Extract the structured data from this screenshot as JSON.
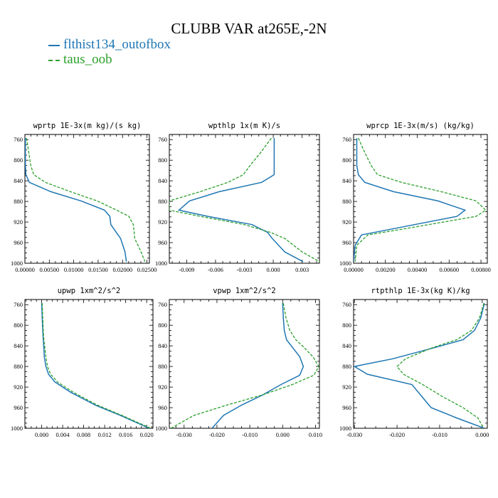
{
  "figure": {
    "title": "CLUBB VAR at265E,-2N",
    "legend": [
      {
        "label": "flthist134_outofbox",
        "color": "#1f77b4",
        "style": "solid"
      },
      {
        "label": "taus_oob",
        "color": "#2ca02c",
        "style": "dashed"
      }
    ]
  },
  "chart_data": [
    {
      "type": "line",
      "title": "wprtp  1E-3x(m kg)/(s kg)",
      "xlim": [
        0,
        0.0255
      ],
      "ylim": [
        1000,
        750
      ],
      "yticks": [
        760,
        800,
        840,
        880,
        920,
        960,
        1000
      ],
      "xticks": [
        0,
        0.005,
        0.01,
        0.015,
        0.02,
        0.025
      ],
      "xtick_labels": [
        "0.00000",
        "0.00500",
        "0.01000",
        "0.01500",
        "0.02000",
        "0.02500"
      ],
      "series": [
        {
          "name": "flthist134_outofbox",
          "x": [
            0.0001,
            0.0001,
            0.0001,
            0.0002,
            0.0009,
            0.0053,
            0.0115,
            0.0163,
            0.0174,
            0.0176,
            0.0196,
            0.0205,
            0.0208
          ],
          "y": [
            757,
            785,
            810,
            828,
            843,
            861,
            879,
            897,
            909,
            925,
            952,
            978,
            997
          ]
        },
        {
          "name": "taus_oob",
          "x": [
            0.0003,
            0.0008,
            0.0012,
            0.0018,
            0.0042,
            0.0093,
            0.0148,
            0.0188,
            0.0213,
            0.0222,
            0.0225,
            0.0238,
            0.0246
          ],
          "y": [
            757,
            785,
            810,
            828,
            843,
            861,
            879,
            897,
            909,
            925,
            952,
            978,
            997
          ]
        }
      ]
    },
    {
      "type": "line",
      "title": "wpthlp  1x(m K)/s",
      "xlim": [
        -0.0108,
        0.0048
      ],
      "ylim": [
        1000,
        750
      ],
      "yticks": [
        760,
        800,
        840,
        880,
        920,
        960,
        1000
      ],
      "xticks": [
        -0.009,
        -0.006,
        -0.003,
        0.0,
        0.003
      ],
      "xtick_labels": [
        "-0.009",
        "-0.006",
        "-0.003",
        "0.000",
        "0.003"
      ],
      "series": [
        {
          "name": "flthist134_outofbox",
          "x": [
            0.0001,
            0.0001,
            0.0001,
            0.0001,
            -0.0012,
            -0.0056,
            -0.0087,
            -0.0098,
            -0.0068,
            -0.0022,
            -0.0006,
            -0.0001,
            0.0012,
            0.0031
          ],
          "y": [
            757,
            785,
            810,
            828,
            843,
            861,
            879,
            897,
            909,
            925,
            940,
            952,
            978,
            997
          ]
        },
        {
          "name": "taus_oob",
          "x": [
            -0.0002,
            -0.0013,
            -0.0024,
            -0.0031,
            -0.0047,
            -0.0076,
            -0.0108,
            -0.0108,
            -0.0076,
            -0.003,
            -0.0003,
            0.0012,
            0.003,
            0.0048
          ],
          "y": [
            757,
            785,
            810,
            828,
            843,
            861,
            879,
            897,
            909,
            925,
            940,
            952,
            978,
            997
          ]
        }
      ]
    },
    {
      "type": "line",
      "title": "wprcp  1E-3x(m/s) (kg/kg)",
      "xlim": [
        0,
        0.0084
      ],
      "ylim": [
        1000,
        750
      ],
      "yticks": [
        760,
        800,
        840,
        880,
        920,
        960,
        1000
      ],
      "xticks": [
        0,
        0.002,
        0.004,
        0.006,
        0.008
      ],
      "xtick_labels": [
        "0.00000",
        "0.00200",
        "0.00400",
        "0.00600",
        "0.00800"
      ],
      "series": [
        {
          "name": "flthist134_outofbox",
          "x": [
            0.0002,
            0.0002,
            0.0002,
            0.0003,
            0.0007,
            0.0025,
            0.0053,
            0.007,
            0.0065,
            0.003,
            0.0005,
            0.0001,
            0.0
          ],
          "y": [
            757,
            785,
            810,
            828,
            843,
            861,
            879,
            897,
            909,
            930,
            945,
            965,
            997
          ]
        },
        {
          "name": "taus_oob",
          "x": [
            0.0003,
            0.0007,
            0.0011,
            0.0015,
            0.003,
            0.0055,
            0.0077,
            0.0083,
            0.0077,
            0.0038,
            0.0009,
            0.0002,
            0.0001
          ],
          "y": [
            757,
            785,
            810,
            828,
            843,
            861,
            879,
            897,
            909,
            930,
            945,
            965,
            997
          ]
        }
      ]
    },
    {
      "type": "line",
      "title": "upwp  1xm^2/s^2",
      "xlim": [
        -0.0032,
        0.0212
      ],
      "ylim": [
        1000,
        750
      ],
      "yticks": [
        760,
        800,
        840,
        880,
        920,
        960,
        1000
      ],
      "xticks": [
        0.0,
        0.004,
        0.008,
        0.012,
        0.016,
        0.02
      ],
      "xtick_labels": [
        "0.000",
        "0.004",
        "0.008",
        "0.012",
        "0.016",
        "0.020"
      ],
      "series": [
        {
          "name": "flthist134_outofbox",
          "x": [
            0.0,
            0.0001,
            0.0002,
            0.0003,
            0.0004,
            0.0005,
            0.0008,
            0.0013,
            0.0025,
            0.0055,
            0.0102,
            0.015,
            0.0205
          ],
          "y": [
            757,
            785,
            810,
            828,
            843,
            861,
            880,
            895,
            910,
            930,
            955,
            975,
            1000
          ]
        },
        {
          "name": "taus_oob",
          "x": [
            0.0001,
            0.0002,
            0.0003,
            0.0004,
            0.0006,
            0.0008,
            0.0011,
            0.0017,
            0.003,
            0.006,
            0.0106,
            0.0153,
            0.0208
          ],
          "y": [
            757,
            785,
            810,
            828,
            843,
            861,
            880,
            895,
            910,
            930,
            955,
            975,
            1000
          ]
        }
      ]
    },
    {
      "type": "line",
      "title": "vpwp  1xm^2/s^2",
      "xlim": [
        -0.0345,
        0.0112
      ],
      "ylim": [
        1000,
        750
      ],
      "yticks": [
        760,
        800,
        840,
        880,
        920,
        960,
        1000
      ],
      "xticks": [
        -0.03,
        -0.02,
        -0.01,
        0.0,
        0.01
      ],
      "xtick_labels": [
        "-0.030",
        "-0.020",
        "-0.010",
        "0.000",
        "0.010"
      ],
      "series": [
        {
          "name": "flthist134_outofbox",
          "x": [
            0.0,
            0.0002,
            0.0005,
            0.0012,
            0.003,
            0.0052,
            0.0063,
            0.0052,
            -0.0005,
            -0.006,
            -0.0125,
            -0.018,
            -0.0215
          ],
          "y": [
            757,
            785,
            810,
            828,
            843,
            861,
            880,
            897,
            915,
            935,
            955,
            975,
            1000
          ]
        },
        {
          "name": "taus_oob",
          "x": [
            0.0002,
            0.001,
            0.0022,
            0.004,
            0.0065,
            0.0092,
            0.011,
            0.0095,
            0.003,
            -0.006,
            -0.017,
            -0.027,
            -0.034
          ],
          "y": [
            757,
            785,
            810,
            828,
            843,
            861,
            880,
            897,
            915,
            935,
            955,
            975,
            1000
          ]
        }
      ]
    },
    {
      "type": "line",
      "title": "rtpthlp  1E-3x(kg K)/kg",
      "xlim": [
        -0.0302,
        0.0012
      ],
      "ylim": [
        1000,
        750
      ],
      "yticks": [
        760,
        800,
        840,
        880,
        920,
        960,
        1000
      ],
      "xticks": [
        -0.03,
        -0.02,
        -0.01,
        0.0
      ],
      "xtick_labels": [
        "-0.030",
        "-0.020",
        "-0.010",
        "0.000"
      ],
      "series": [
        {
          "name": "flthist134_outofbox",
          "x": [
            0.0005,
            -0.0003,
            -0.0018,
            -0.0045,
            -0.011,
            -0.021,
            -0.03,
            -0.027,
            -0.0165,
            -0.014,
            -0.012,
            -0.006,
            0.0005
          ],
          "y": [
            757,
            785,
            810,
            828,
            843,
            865,
            880,
            895,
            915,
            940,
            960,
            980,
            1000
          ]
        },
        {
          "name": "taus_oob",
          "x": [
            0.0004,
            -0.0006,
            -0.0025,
            -0.006,
            -0.0115,
            -0.018,
            -0.02,
            -0.0185,
            -0.014,
            -0.009,
            -0.0045,
            -0.001,
            0.0003
          ],
          "y": [
            757,
            785,
            810,
            828,
            843,
            865,
            880,
            895,
            915,
            940,
            960,
            980,
            1000
          ]
        }
      ]
    }
  ]
}
